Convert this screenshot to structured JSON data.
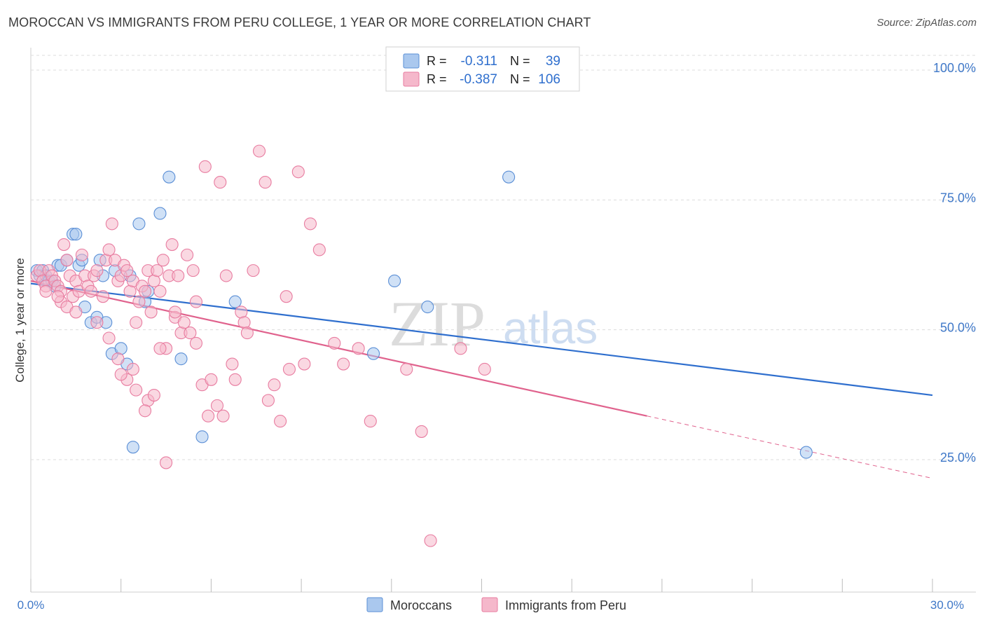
{
  "header": {
    "title": "MOROCCAN VS IMMIGRANTS FROM PERU COLLEGE, 1 YEAR OR MORE CORRELATION CHART",
    "source": "Source: ZipAtlas.com"
  },
  "watermark": {
    "zip": "ZIP",
    "atlas": "atlas"
  },
  "colors": {
    "blue": "#5b8fd6",
    "blue_fill": "#aac8ee",
    "blue_line": "#2f6fce",
    "pink": "#e87ca0",
    "pink_fill": "#f5b8cb",
    "pink_line": "#e0628d",
    "tick_label": "#3f78c8",
    "grid": "#dcdcdc"
  },
  "chart_data": {
    "type": "scatter",
    "xlabel": "",
    "ylabel": "College, 1 year or more",
    "xlim": [
      0,
      30
    ],
    "ylim": [
      0,
      105
    ],
    "x_tick_labels": [
      "0.0%",
      "30.0%"
    ],
    "y_ticks": [
      25,
      50,
      75,
      100
    ],
    "y_tick_labels": [
      "25.0%",
      "50.0%",
      "75.0%",
      "100.0%"
    ],
    "grid": true,
    "legend": {
      "position": "top-center",
      "rows": [
        {
          "r_label": "R =",
          "r_value": "-0.311",
          "n_label": "N =",
          "n_value": "39"
        },
        {
          "r_label": "R =",
          "r_value": "-0.387",
          "n_label": "N =",
          "n_value": "106"
        }
      ]
    },
    "bottom_legend": [
      "Moroccans",
      "Immigrants from Peru"
    ],
    "series": [
      {
        "name": "Moroccans",
        "color": "#5b8fd6",
        "trend": {
          "x0": 0,
          "y0": 58.5,
          "x1": 30,
          "y1": 37
        },
        "points": [
          [
            0.2,
            61
          ],
          [
            0.3,
            60
          ],
          [
            0.4,
            61
          ],
          [
            0.5,
            60
          ],
          [
            0.6,
            59
          ],
          [
            0.7,
            59
          ],
          [
            0.9,
            62
          ],
          [
            1.0,
            62
          ],
          [
            1.2,
            63
          ],
          [
            1.4,
            68
          ],
          [
            1.5,
            68
          ],
          [
            1.6,
            62
          ],
          [
            1.7,
            63
          ],
          [
            1.8,
            54
          ],
          [
            2.0,
            51
          ],
          [
            2.2,
            52
          ],
          [
            2.3,
            63
          ],
          [
            2.4,
            60
          ],
          [
            2.5,
            51
          ],
          [
            2.7,
            45
          ],
          [
            3.0,
            46
          ],
          [
            3.2,
            43
          ],
          [
            3.4,
            27
          ],
          [
            3.6,
            70
          ],
          [
            3.8,
            55
          ],
          [
            3.9,
            57
          ],
          [
            4.3,
            72
          ],
          [
            4.6,
            79
          ],
          [
            5.0,
            44
          ],
          [
            5.7,
            29
          ],
          [
            6.8,
            55
          ],
          [
            11.4,
            45
          ],
          [
            12.1,
            59
          ],
          [
            13.2,
            54
          ],
          [
            15.9,
            79
          ],
          [
            25.8,
            26
          ],
          [
            0.8,
            58
          ],
          [
            2.8,
            61
          ],
          [
            3.3,
            60
          ]
        ]
      },
      {
        "name": "Immigrants from Peru",
        "color": "#e87ca0",
        "trend": {
          "x0": 0,
          "y0": 59,
          "x1": 20.5,
          "y1": 33
        },
        "trend_dashed": {
          "x0": 20.5,
          "y0": 33,
          "x1": 30,
          "y1": 21
        },
        "points": [
          [
            0.2,
            60
          ],
          [
            0.3,
            61
          ],
          [
            0.4,
            59
          ],
          [
            0.5,
            58
          ],
          [
            0.6,
            61
          ],
          [
            0.7,
            60
          ],
          [
            0.8,
            59
          ],
          [
            0.9,
            58
          ],
          [
            1.0,
            57
          ],
          [
            1.1,
            66
          ],
          [
            1.2,
            63
          ],
          [
            1.3,
            60
          ],
          [
            1.4,
            56
          ],
          [
            1.5,
            59
          ],
          [
            1.6,
            57
          ],
          [
            1.7,
            64
          ],
          [
            1.8,
            60
          ],
          [
            1.9,
            58
          ],
          [
            2.0,
            57
          ],
          [
            2.1,
            60
          ],
          [
            2.2,
            61
          ],
          [
            2.4,
            56
          ],
          [
            2.5,
            63
          ],
          [
            2.6,
            65
          ],
          [
            2.7,
            70
          ],
          [
            2.8,
            63
          ],
          [
            2.9,
            59
          ],
          [
            3.0,
            60
          ],
          [
            3.1,
            62
          ],
          [
            3.2,
            61
          ],
          [
            3.3,
            57
          ],
          [
            3.4,
            59
          ],
          [
            3.5,
            51
          ],
          [
            3.6,
            55
          ],
          [
            3.7,
            58
          ],
          [
            3.8,
            57
          ],
          [
            3.9,
            61
          ],
          [
            4.0,
            53
          ],
          [
            4.1,
            59
          ],
          [
            4.2,
            61
          ],
          [
            4.3,
            57
          ],
          [
            4.4,
            63
          ],
          [
            4.5,
            46
          ],
          [
            4.6,
            60
          ],
          [
            4.7,
            66
          ],
          [
            4.8,
            52
          ],
          [
            4.9,
            60
          ],
          [
            5.0,
            49
          ],
          [
            5.1,
            51
          ],
          [
            5.2,
            64
          ],
          [
            5.3,
            49
          ],
          [
            5.4,
            61
          ],
          [
            5.5,
            47
          ],
          [
            5.7,
            39
          ],
          [
            5.9,
            33
          ],
          [
            6.0,
            40
          ],
          [
            6.2,
            35
          ],
          [
            6.5,
            60
          ],
          [
            6.7,
            43
          ],
          [
            6.8,
            40
          ],
          [
            7.0,
            53
          ],
          [
            7.1,
            51
          ],
          [
            7.2,
            49
          ],
          [
            7.4,
            61
          ],
          [
            7.6,
            84
          ],
          [
            7.8,
            78
          ],
          [
            8.1,
            39
          ],
          [
            8.3,
            32
          ],
          [
            8.5,
            56
          ],
          [
            8.6,
            42
          ],
          [
            8.9,
            80
          ],
          [
            9.3,
            70
          ],
          [
            9.6,
            65
          ],
          [
            10.1,
            47
          ],
          [
            10.4,
            43
          ],
          [
            10.9,
            46
          ],
          [
            11.3,
            32
          ],
          [
            12.5,
            42
          ],
          [
            13.0,
            30
          ],
          [
            13.3,
            9
          ],
          [
            1.0,
            55
          ],
          [
            1.2,
            54
          ],
          [
            2.9,
            44
          ],
          [
            3.2,
            40
          ],
          [
            3.5,
            38
          ],
          [
            3.9,
            36
          ],
          [
            4.3,
            46
          ],
          [
            4.5,
            24
          ],
          [
            5.5,
            55
          ],
          [
            5.8,
            81
          ],
          [
            6.3,
            78
          ],
          [
            0.5,
            57
          ],
          [
            0.9,
            56
          ],
          [
            1.5,
            53
          ],
          [
            2.2,
            51
          ],
          [
            2.6,
            48
          ],
          [
            3.0,
            41
          ],
          [
            3.4,
            42
          ],
          [
            3.8,
            34
          ],
          [
            4.1,
            37
          ],
          [
            4.8,
            53
          ],
          [
            6.4,
            33
          ],
          [
            7.9,
            36
          ],
          [
            9.1,
            43
          ],
          [
            14.3,
            46
          ],
          [
            15.1,
            42
          ]
        ]
      }
    ]
  }
}
